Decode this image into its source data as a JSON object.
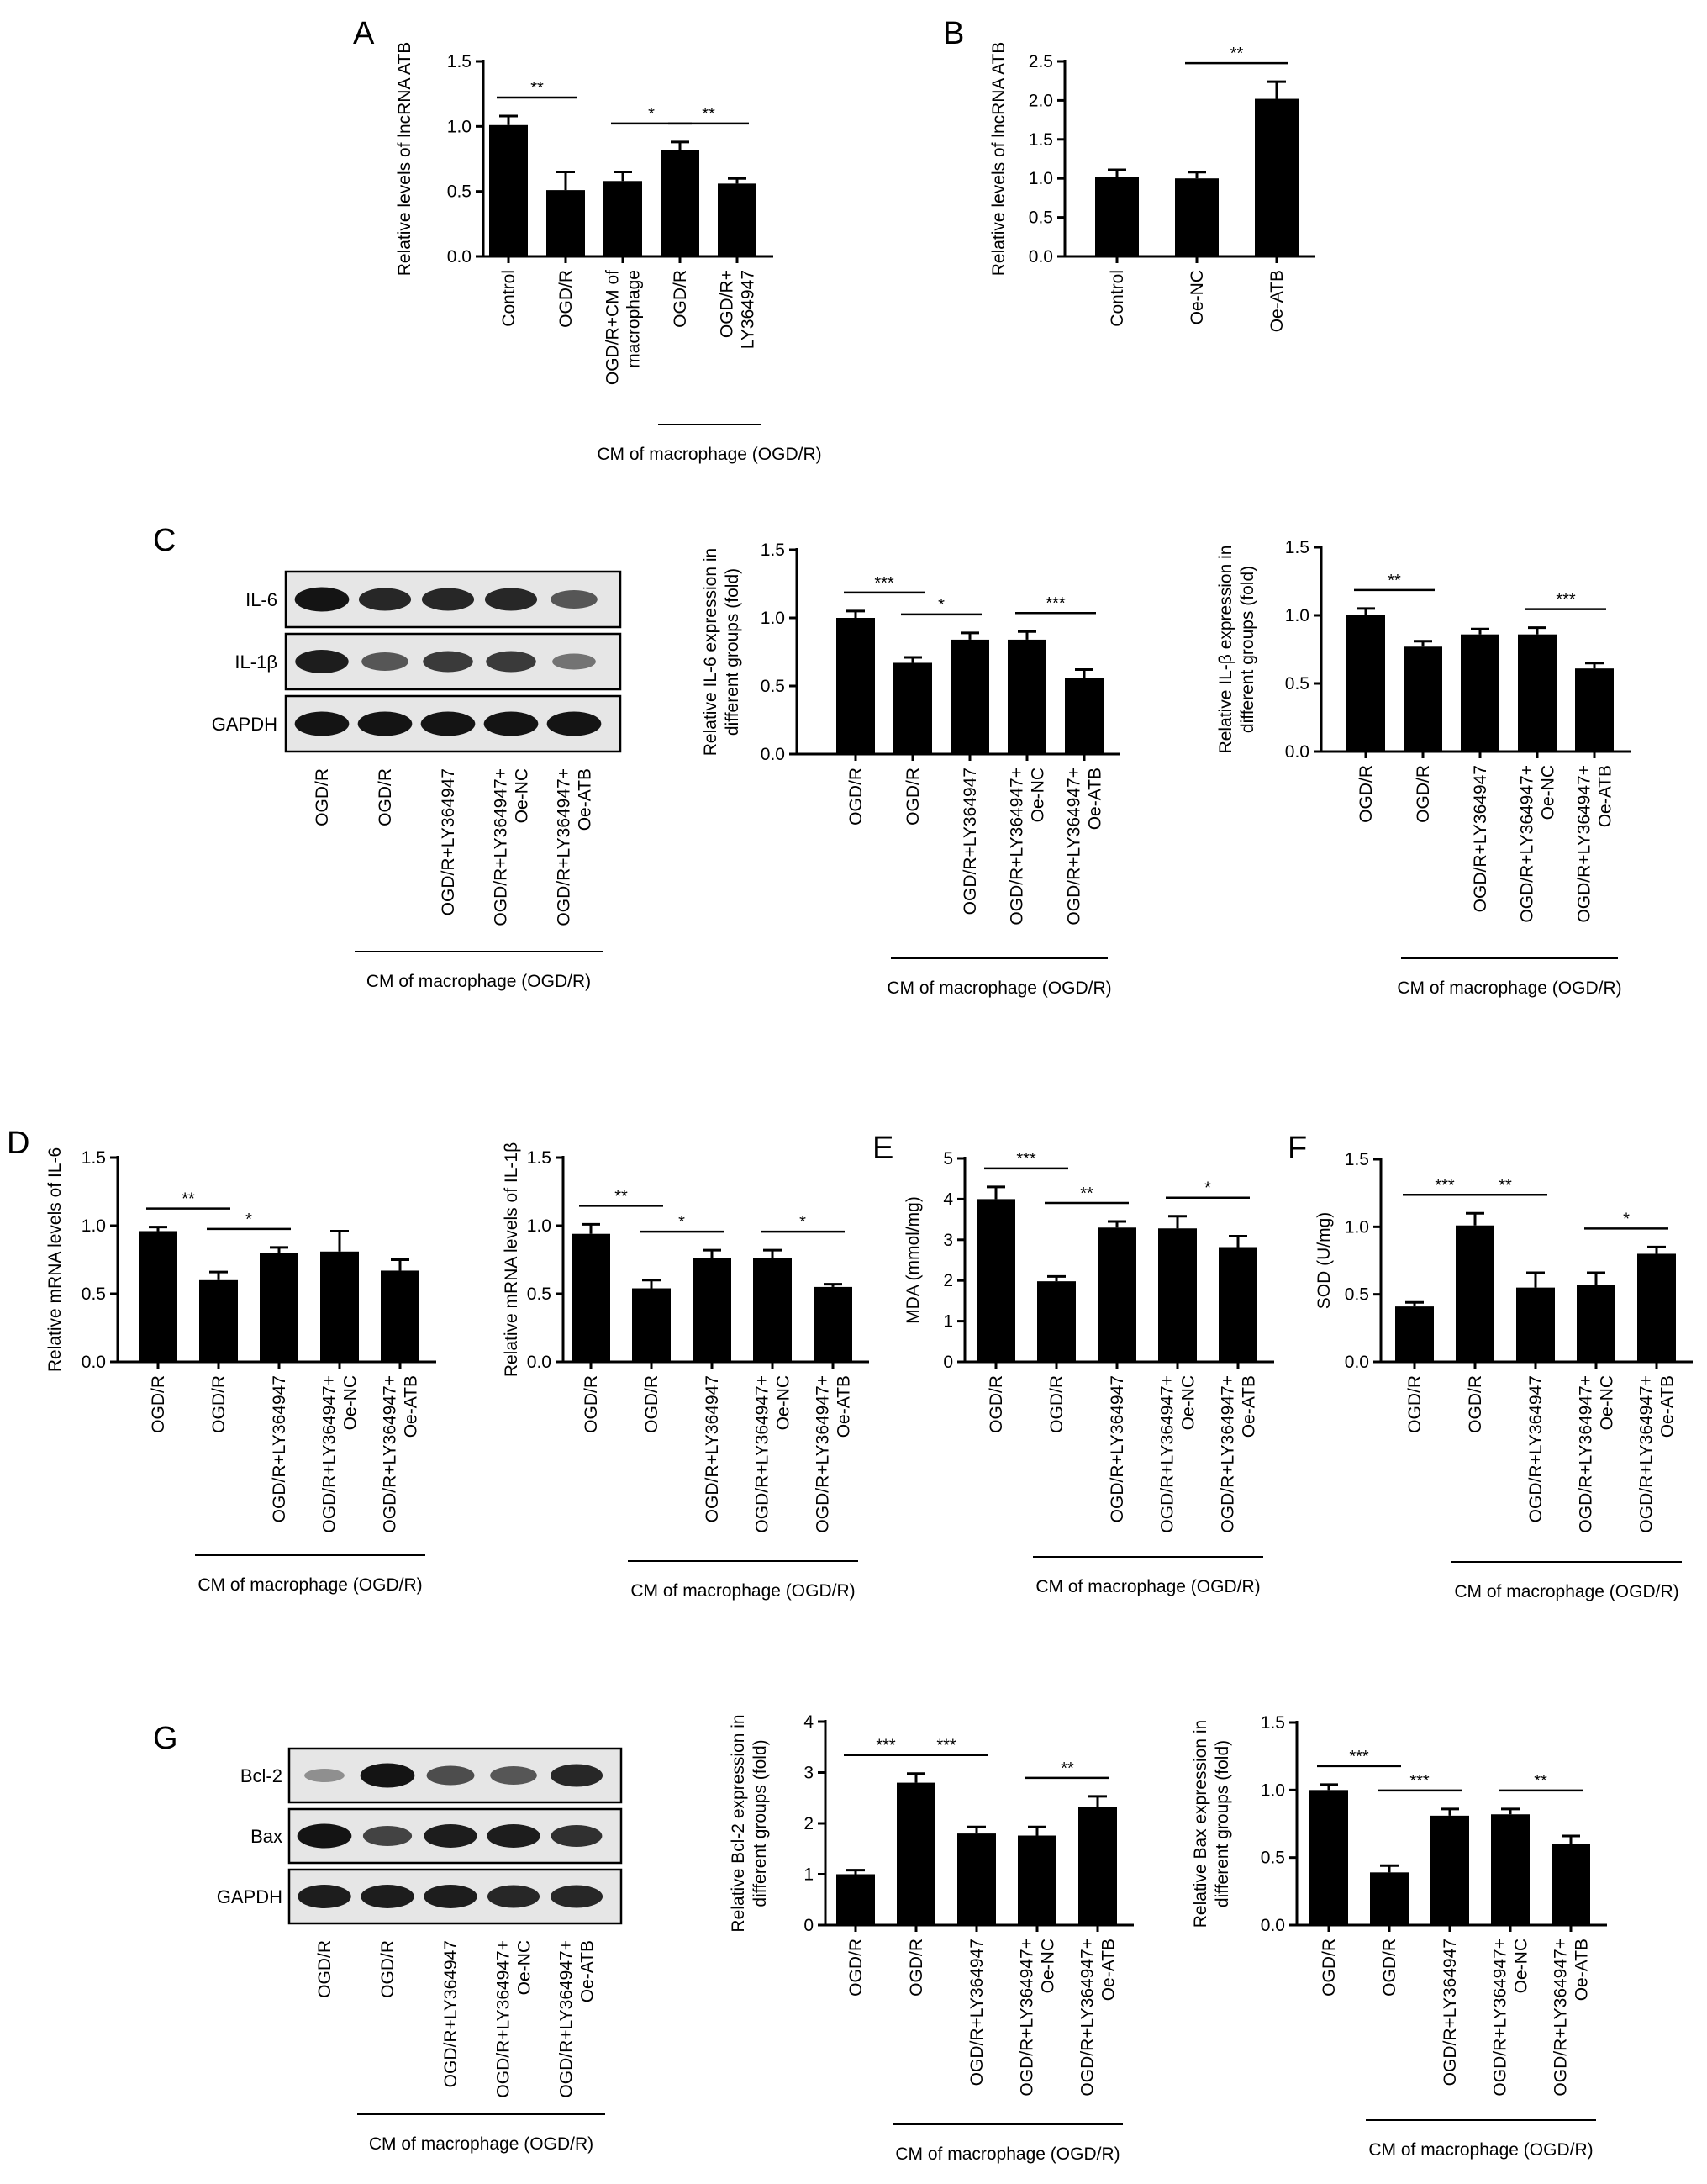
{
  "panel_letters": [
    "A",
    "B",
    "C",
    "D",
    "E",
    "F",
    "G"
  ],
  "colors": {
    "bar": "#000000",
    "blot_bg": "#e6e6e6",
    "band": "#111111"
  },
  "chart_data": [
    {
      "id": "A",
      "type": "bar",
      "ylabel": "Relative levels of lncRNA ATB",
      "ylim": [
        0,
        1.5
      ],
      "yticks": [
        "0.0",
        "0.5",
        "1.0",
        "1.5"
      ],
      "categories": [
        "Control",
        "OGD/R",
        "OGD/R+CM of\nmacrophage",
        "OGD/R",
        "OGD/R+\nLY364947"
      ],
      "values": [
        1.01,
        0.51,
        0.58,
        0.82,
        0.56
      ],
      "errors": [
        0.07,
        0.14,
        0.07,
        0.06,
        0.04
      ],
      "significance": [
        {
          "from": 0,
          "to": 1,
          "label": "**"
        },
        {
          "from": 2,
          "to": 3,
          "label": "*"
        },
        {
          "from": 3,
          "to": 4,
          "label": "**"
        }
      ],
      "group_bracket": {
        "from": 3,
        "to": 4,
        "label": "CM of macrophage (OGD/R)"
      }
    },
    {
      "id": "B",
      "type": "bar",
      "ylabel": "Relative levels of lncRNA ATB",
      "ylim": [
        0,
        2.5
      ],
      "yticks": [
        "0.0",
        "0.5",
        "1.0",
        "1.5",
        "2.0",
        "2.5"
      ],
      "categories": [
        "Control",
        "Oe-NC",
        "Oe-ATB"
      ],
      "values": [
        1.02,
        1.0,
        2.02
      ],
      "errors": [
        0.09,
        0.08,
        0.22
      ],
      "significance": [
        {
          "from": 1,
          "to": 2,
          "label": "**"
        }
      ]
    },
    {
      "id": "C1",
      "type": "bar",
      "ylabel": "Relative IL-6 expression in\ndifferent groups (fold)",
      "ylim": [
        0,
        1.5
      ],
      "yticks": [
        "0.0",
        "0.5",
        "1.0",
        "1.5"
      ],
      "categories": [
        "OGD/R",
        "OGD/R",
        "OGD/R+LY364947",
        "OGD/R+LY364947+\nOe-NC",
        "OGD/R+LY364947+\nOe-ATB"
      ],
      "values": [
        1.0,
        0.67,
        0.84,
        0.84,
        0.56
      ],
      "errors": [
        0.05,
        0.04,
        0.05,
        0.06,
        0.06
      ],
      "significance": [
        {
          "from": 0,
          "to": 1,
          "label": "***"
        },
        {
          "from": 1,
          "to": 2,
          "label": "*"
        },
        {
          "from": 3,
          "to": 4,
          "label": "***"
        }
      ],
      "group_bracket": {
        "from": 1,
        "to": 4,
        "label": "CM of macrophage (OGD/R)"
      }
    },
    {
      "id": "C2",
      "type": "bar",
      "ylabel": "Relative IL-β expression in\ndifferent groups (fold)",
      "ylim": [
        0,
        1.5
      ],
      "yticks": [
        "0.0",
        "0.5",
        "1.0",
        "1.5"
      ],
      "categories": [
        "OGD/R",
        "OGD/R",
        "OGD/R+LY364947",
        "OGD/R+LY364947+\nOe-NC",
        "OGD/R+LY364947+\nOe-ATB"
      ],
      "values": [
        1.0,
        0.77,
        0.86,
        0.86,
        0.61
      ],
      "errors": [
        0.05,
        0.04,
        0.04,
        0.05,
        0.04
      ],
      "significance": [
        {
          "from": 0,
          "to": 1,
          "label": "**"
        },
        {
          "from": 3,
          "to": 4,
          "label": "***"
        }
      ],
      "group_bracket": {
        "from": 1,
        "to": 4,
        "label": "CM of macrophage (OGD/R)"
      }
    },
    {
      "id": "D1",
      "type": "bar",
      "ylabel": "Relative mRNA levels of IL-6",
      "ylim": [
        0,
        1.5
      ],
      "yticks": [
        "0.0",
        "0.5",
        "1.0",
        "1.5"
      ],
      "categories": [
        "OGD/R",
        "OGD/R",
        "OGD/R+LY364947",
        "OGD/R+LY364947+\nOe-NC",
        "OGD/R+LY364947+\nOe-ATB"
      ],
      "values": [
        0.96,
        0.6,
        0.8,
        0.81,
        0.67
      ],
      "errors": [
        0.03,
        0.06,
        0.04,
        0.15,
        0.08
      ],
      "significance": [
        {
          "from": 0,
          "to": 1,
          "label": "**"
        },
        {
          "from": 1,
          "to": 2,
          "label": "*"
        }
      ],
      "group_bracket": {
        "from": 1,
        "to": 4,
        "label": "CM of macrophage (OGD/R)"
      }
    },
    {
      "id": "D2",
      "type": "bar",
      "ylabel": "Relative mRNA levels of IL-1β",
      "ylim": [
        0,
        1.5
      ],
      "yticks": [
        "0.0",
        "0.5",
        "1.0",
        "1.5"
      ],
      "categories": [
        "OGD/R",
        "OGD/R",
        "OGD/R+LY364947",
        "OGD/R+LY364947+\nOe-NC",
        "OGD/R+LY364947+\nOe-ATB"
      ],
      "values": [
        0.94,
        0.54,
        0.76,
        0.76,
        0.55
      ],
      "errors": [
        0.07,
        0.06,
        0.06,
        0.06,
        0.02
      ],
      "significance": [
        {
          "from": 0,
          "to": 1,
          "label": "**"
        },
        {
          "from": 1,
          "to": 2,
          "label": "*"
        },
        {
          "from": 3,
          "to": 4,
          "label": "*"
        }
      ],
      "group_bracket": {
        "from": 1,
        "to": 4,
        "label": "CM of macrophage (OGD/R)"
      }
    },
    {
      "id": "E",
      "type": "bar",
      "ylabel": "MDA (mmol/mg)",
      "ylim": [
        0,
        5
      ],
      "yticks": [
        "0",
        "1",
        "2",
        "3",
        "4",
        "5"
      ],
      "categories": [
        "OGD/R",
        "OGD/R",
        "OGD/R+LY364947",
        "OGD/R+LY364947+\nOe-NC",
        "OGD/R+LY364947+\nOe-ATB"
      ],
      "values": [
        4.0,
        1.98,
        3.3,
        3.28,
        2.82
      ],
      "errors": [
        0.3,
        0.12,
        0.15,
        0.3,
        0.27
      ],
      "significance": [
        {
          "from": 0,
          "to": 1,
          "label": "***"
        },
        {
          "from": 1,
          "to": 2,
          "label": "**"
        },
        {
          "from": 3,
          "to": 4,
          "label": "*"
        }
      ],
      "group_bracket": {
        "from": 1,
        "to": 4,
        "label": "CM of macrophage (OGD/R)"
      }
    },
    {
      "id": "F",
      "type": "bar",
      "ylabel": "SOD (U/mg)",
      "ylim": [
        0,
        1.5
      ],
      "yticks": [
        "0.0",
        "0.5",
        "1.0",
        "1.5"
      ],
      "categories": [
        "OGD/R",
        "OGD/R",
        "OGD/R+LY364947",
        "OGD/R+LY364947+\nOe-NC",
        "OGD/R+LY364947+\nOe-ATB"
      ],
      "values": [
        0.41,
        1.01,
        0.55,
        0.57,
        0.8
      ],
      "errors": [
        0.03,
        0.09,
        0.11,
        0.09,
        0.05
      ],
      "significance": [
        {
          "from": 0,
          "to": 1,
          "label": "***"
        },
        {
          "from": 1,
          "to": 2,
          "label": "**"
        },
        {
          "from": 3,
          "to": 4,
          "label": "*"
        }
      ],
      "group_bracket": {
        "from": 1,
        "to": 4,
        "label": "CM of macrophage (OGD/R)"
      }
    },
    {
      "id": "G1",
      "type": "bar",
      "ylabel": "Relative Bcl-2 expression in\ndifferent groups (fold)",
      "ylim": [
        0,
        4
      ],
      "yticks": [
        "0",
        "1",
        "2",
        "3",
        "4"
      ],
      "categories": [
        "OGD/R",
        "OGD/R",
        "OGD/R+LY364947",
        "OGD/R+LY364947+\nOe-NC",
        "OGD/R+LY364947+\nOe-ATB"
      ],
      "values": [
        1.0,
        2.8,
        1.8,
        1.76,
        2.33
      ],
      "errors": [
        0.08,
        0.18,
        0.13,
        0.17,
        0.2
      ],
      "significance": [
        {
          "from": 0,
          "to": 1,
          "label": "***"
        },
        {
          "from": 1,
          "to": 2,
          "label": "***"
        },
        {
          "from": 3,
          "to": 4,
          "label": "**"
        }
      ],
      "group_bracket": {
        "from": 1,
        "to": 4,
        "label": "CM of macrophage (OGD/R)"
      }
    },
    {
      "id": "G2",
      "type": "bar",
      "ylabel": "Relative Bax expression in\ndifferent groups (fold)",
      "ylim": [
        0,
        1.5
      ],
      "yticks": [
        "0.0",
        "0.5",
        "1.0",
        "1.5"
      ],
      "categories": [
        "OGD/R",
        "OGD/R",
        "OGD/R+LY364947",
        "OGD/R+LY364947+\nOe-NC",
        "OGD/R+LY364947+\nOe-ATB"
      ],
      "values": [
        1.0,
        0.39,
        0.81,
        0.82,
        0.6
      ],
      "errors": [
        0.04,
        0.05,
        0.05,
        0.04,
        0.06
      ],
      "significance": [
        {
          "from": 0,
          "to": 1,
          "label": "***"
        },
        {
          "from": 1,
          "to": 2,
          "label": "***"
        },
        {
          "from": 3,
          "to": 4,
          "label": "**"
        }
      ],
      "group_bracket": {
        "from": 1,
        "to": 4,
        "label": "CM of macrophage (OGD/R)"
      }
    }
  ],
  "blots": [
    {
      "id": "C-blot",
      "rows": [
        {
          "label": "IL-6",
          "intensity": [
            0.95,
            0.85,
            0.85,
            0.85,
            0.6
          ]
        },
        {
          "label": "IL-1β",
          "intensity": [
            0.9,
            0.6,
            0.75,
            0.75,
            0.45
          ]
        },
        {
          "label": "GAPDH",
          "intensity": [
            0.95,
            0.95,
            0.95,
            0.95,
            0.95
          ]
        }
      ],
      "lanes": [
        "OGD/R",
        "OGD/R",
        "OGD/R+LY364947",
        "OGD/R+LY364947+\nOe-NC",
        "OGD/R+LY364947+\nOe-ATB"
      ],
      "group_bracket": {
        "from": 1,
        "to": 4,
        "label": "CM of macrophage (OGD/R)"
      }
    },
    {
      "id": "G-blot",
      "rows": [
        {
          "label": "Bcl-2",
          "intensity": [
            0.3,
            0.95,
            0.65,
            0.6,
            0.85
          ]
        },
        {
          "label": "Bax",
          "intensity": [
            0.95,
            0.7,
            0.9,
            0.9,
            0.8
          ]
        },
        {
          "label": "GAPDH",
          "intensity": [
            0.9,
            0.9,
            0.9,
            0.85,
            0.85
          ]
        }
      ],
      "lanes": [
        "OGD/R",
        "OGD/R",
        "OGD/R+LY364947",
        "OGD/R+LY364947+\nOe-NC",
        "OGD/R+LY364947+\nOe-ATB"
      ],
      "group_bracket": {
        "from": 1,
        "to": 4,
        "label": "CM of macrophage (OGD/R)"
      }
    }
  ]
}
